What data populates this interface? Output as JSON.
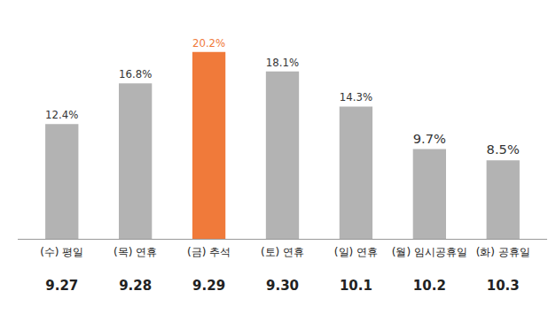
{
  "chart_data": {
    "type": "bar",
    "categories": [
      "9.27",
      "9.28",
      "9.29",
      "9.30",
      "10.1",
      "10.2",
      "10.3"
    ],
    "category_labels": [
      "(수) 평일",
      "(목) 연휴",
      "(금) 추석",
      "(토) 연휴",
      "(일) 연휴",
      "(월) 임시공휴일",
      "(화) 공휴일"
    ],
    "values": [
      12.4,
      16.8,
      20.2,
      18.1,
      14.3,
      9.7,
      8.5
    ],
    "value_labels": [
      "12.4%",
      "16.8%",
      "20.2%",
      "18.1%",
      "14.3%",
      "9.7%",
      "8.5%"
    ],
    "colors": [
      "#b3b3b3",
      "#b3b3b3",
      "#f07a3a",
      "#b3b3b3",
      "#b3b3b3",
      "#b3b3b3",
      "#b3b3b3"
    ],
    "ylim": [
      0,
      22
    ],
    "data_labels": true,
    "tick_labels": "x",
    "grid": false
  }
}
